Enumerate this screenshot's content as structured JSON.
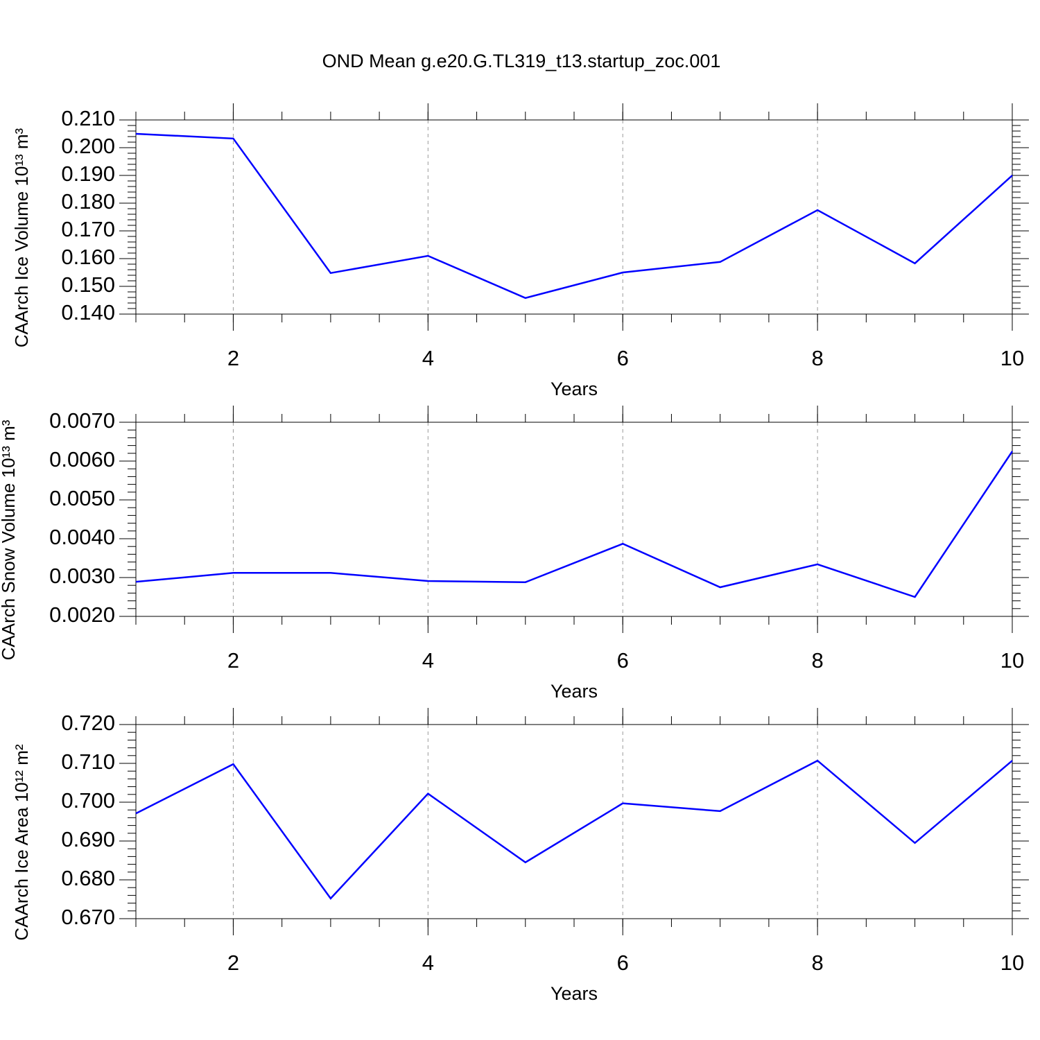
{
  "title": "OND Mean g.e20.G.TL319_t13.startup_zoc.001",
  "chart_data": [
    {
      "type": "line",
      "ylabel": "CAArch Ice Volume 10¹³ m³",
      "xlabel": "Years",
      "x": [
        1,
        2,
        3,
        4,
        5,
        6,
        7,
        8,
        9,
        10
      ],
      "values": [
        0.205,
        0.2033,
        0.1548,
        0.161,
        0.1458,
        0.155,
        0.1588,
        0.1775,
        0.1583,
        0.19
      ],
      "color": "#0000ff",
      "xlim": [
        1,
        10
      ],
      "xticks": [
        2,
        4,
        6,
        8,
        10
      ],
      "ylim": [
        0.14,
        0.21
      ],
      "yticks": [
        {
          "value": 0.14,
          "label": "0.140"
        },
        {
          "value": 0.15,
          "label": "0.150"
        },
        {
          "value": 0.16,
          "label": "0.160"
        },
        {
          "value": 0.17,
          "label": "0.170"
        },
        {
          "value": 0.18,
          "label": "0.180"
        },
        {
          "value": 0.19,
          "label": "0.190"
        },
        {
          "value": 0.2,
          "label": "0.200"
        },
        {
          "value": 0.21,
          "label": "0.210"
        }
      ],
      "grid": true
    },
    {
      "type": "line",
      "ylabel": "CAArch Snow Volume 10¹³ m³",
      "xlabel": "Years",
      "x": [
        1,
        2,
        3,
        4,
        5,
        6,
        7,
        8,
        9,
        10
      ],
      "values": [
        0.00289,
        0.00312,
        0.00312,
        0.00291,
        0.00288,
        0.00387,
        0.00275,
        0.00334,
        0.0025,
        0.00625
      ],
      "color": "#0000ff",
      "xlim": [
        1,
        10
      ],
      "xticks": [
        2,
        4,
        6,
        8,
        10
      ],
      "ylim": [
        0.002,
        0.007
      ],
      "yticks": [
        {
          "value": 0.002,
          "label": "0.0020"
        },
        {
          "value": 0.003,
          "label": "0.0030"
        },
        {
          "value": 0.004,
          "label": "0.0040"
        },
        {
          "value": 0.005,
          "label": "0.0050"
        },
        {
          "value": 0.006,
          "label": "0.0060"
        },
        {
          "value": 0.007,
          "label": "0.0070"
        }
      ],
      "grid": true
    },
    {
      "type": "line",
      "ylabel": "CAArch Ice Area 10¹² m²",
      "xlabel": "Years",
      "x": [
        1,
        2,
        3,
        4,
        5,
        6,
        7,
        8,
        9,
        10
      ],
      "values": [
        0.6971,
        0.7098,
        0.6752,
        0.7022,
        0.6845,
        0.6997,
        0.6977,
        0.7107,
        0.6895,
        0.7107
      ],
      "color": "#0000ff",
      "xlim": [
        1,
        10
      ],
      "xticks": [
        2,
        4,
        6,
        8,
        10
      ],
      "ylim": [
        0.67,
        0.72
      ],
      "yticks": [
        {
          "value": 0.67,
          "label": "0.670"
        },
        {
          "value": 0.68,
          "label": "0.680"
        },
        {
          "value": 0.69,
          "label": "0.690"
        },
        {
          "value": 0.7,
          "label": "0.700"
        },
        {
          "value": 0.71,
          "label": "0.710"
        },
        {
          "value": 0.72,
          "label": "0.720"
        }
      ],
      "grid": true
    }
  ]
}
